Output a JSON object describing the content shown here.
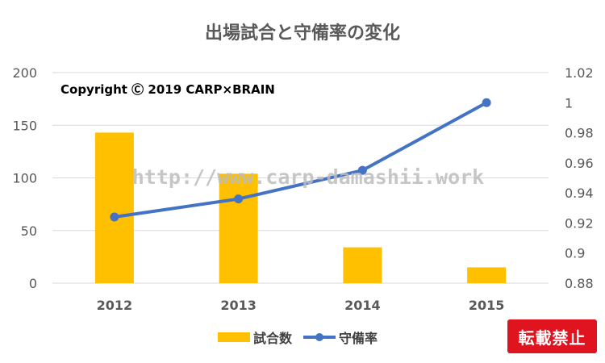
{
  "chart_data": {
    "type": "bar+line",
    "title": "出場試合と守備率の変化",
    "categories": [
      "2012",
      "2013",
      "2014",
      "2015"
    ],
    "series": [
      {
        "name": "試合数",
        "type": "bar",
        "axis": "left",
        "color": "#FFC000",
        "values": [
          143,
          104,
          34,
          15
        ]
      },
      {
        "name": "守備率",
        "type": "line",
        "axis": "right",
        "color": "#4472C4",
        "values": [
          0.924,
          0.936,
          0.955,
          1.0
        ]
      }
    ],
    "y_left": {
      "min": 0,
      "max": 200,
      "ticks": [
        "0",
        "50",
        "100",
        "150",
        "200"
      ]
    },
    "y_right": {
      "min": 0.88,
      "max": 1.02,
      "ticks": [
        "0.88",
        "0.9",
        "0.92",
        "0.94",
        "0.96",
        "0.98",
        "1",
        "1.02"
      ]
    },
    "grid": true,
    "legend_position": "bottom"
  },
  "copyright": "Copyright Ⓒ 2019 CARP×BRAIN",
  "watermark": "http://www.carp-damashii.work",
  "badge": "転載禁止"
}
